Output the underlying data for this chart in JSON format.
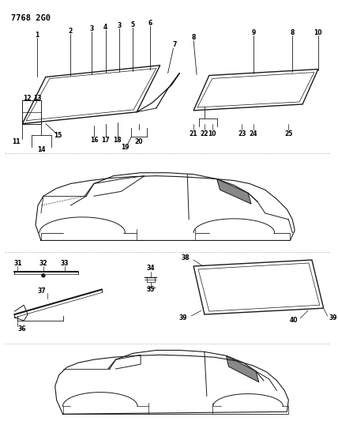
{
  "title": "7768 2G0",
  "bg_color": "#ffffff",
  "line_color": "#1a1a1a",
  "figsize": [
    4.28,
    5.33
  ],
  "dpi": 100,
  "font_size": 5.5
}
